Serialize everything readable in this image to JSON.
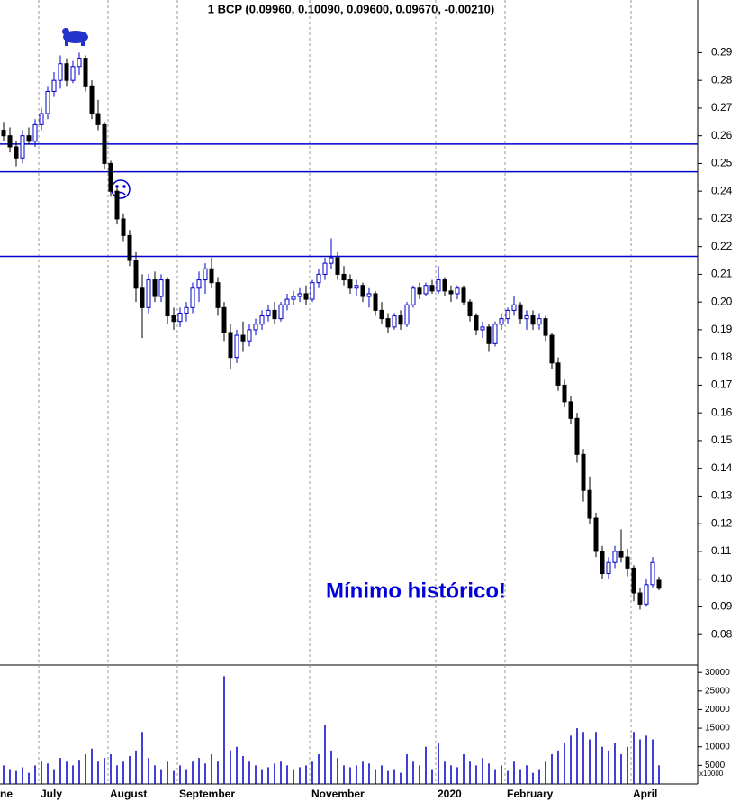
{
  "chart_data": {
    "type": "candlestick",
    "title": "1 BCP (0.09960, 0.10090, 0.09600, 0.09670, -0.00210)",
    "annotation": "Mínimo histórico!",
    "categories": [
      "ne",
      null,
      null,
      null,
      null,
      null,
      "July",
      null,
      null,
      null,
      null,
      null,
      null,
      null,
      null,
      null,
      null,
      "August",
      null,
      null,
      null,
      null,
      null,
      null,
      null,
      null,
      null,
      null,
      "September",
      null,
      null,
      null,
      null,
      null,
      null,
      null,
      null,
      null,
      null,
      null,
      null,
      null,
      null,
      null,
      null,
      null,
      null,
      null,
      null,
      "November",
      null,
      null,
      null,
      null,
      null,
      null,
      null,
      null,
      null,
      null,
      null,
      null,
      null,
      null,
      null,
      null,
      null,
      null,
      null,
      "2020",
      null,
      null,
      null,
      null,
      null,
      null,
      null,
      null,
      null,
      null,
      "February",
      null,
      null,
      null,
      null,
      null,
      null,
      null,
      null,
      null,
      null,
      null,
      null,
      null,
      null,
      null,
      null,
      null,
      null,
      null,
      "April",
      null,
      null,
      null,
      null
    ],
    "open": [
      0.262,
      0.26,
      0.256,
      0.252,
      0.26,
      0.258,
      0.264,
      0.268,
      0.276,
      0.28,
      0.286,
      0.28,
      0.285,
      0.288,
      0.278,
      0.268,
      0.264,
      0.25,
      0.24,
      0.23,
      0.224,
      0.215,
      0.205,
      0.198,
      0.208,
      0.202,
      0.208,
      0.195,
      0.193,
      0.196,
      0.198,
      0.205,
      0.208,
      0.212,
      0.207,
      0.198,
      0.189,
      0.18,
      0.188,
      0.186,
      0.19,
      0.192,
      0.195,
      0.197,
      0.194,
      0.199,
      0.201,
      0.202,
      0.203,
      0.201,
      0.207,
      0.21,
      0.214,
      0.216,
      0.21,
      0.208,
      0.205,
      0.206,
      0.202,
      0.203,
      0.197,
      0.194,
      0.191,
      0.195,
      0.192,
      0.199,
      0.205,
      0.203,
      0.206,
      0.204,
      0.208,
      0.204,
      0.203,
      0.205,
      0.2,
      0.195,
      0.19,
      0.191,
      0.185,
      0.192,
      0.194,
      0.197,
      0.199,
      0.194,
      0.195,
      0.192,
      0.194,
      0.188,
      0.178,
      0.17,
      0.164,
      0.158,
      0.145,
      0.132,
      0.122,
      0.11,
      0.102,
      0.106,
      0.11,
      0.108,
      0.104,
      0.095,
      0.091,
      0.098,
      0.0996
    ],
    "high": [
      0.265,
      0.263,
      0.258,
      0.262,
      0.263,
      0.266,
      0.27,
      0.278,
      0.283,
      0.289,
      0.288,
      0.287,
      0.29,
      0.289,
      0.28,
      0.273,
      0.265,
      0.251,
      0.241,
      0.232,
      0.226,
      0.218,
      0.21,
      0.21,
      0.211,
      0.21,
      0.209,
      0.198,
      0.198,
      0.2,
      0.207,
      0.211,
      0.214,
      0.216,
      0.209,
      0.2,
      0.192,
      0.19,
      0.193,
      0.192,
      0.194,
      0.197,
      0.199,
      0.2,
      0.2,
      0.203,
      0.204,
      0.205,
      0.206,
      0.208,
      0.212,
      0.216,
      0.223,
      0.218,
      0.213,
      0.21,
      0.208,
      0.207,
      0.205,
      0.204,
      0.2,
      0.196,
      0.196,
      0.197,
      0.2,
      0.206,
      0.207,
      0.207,
      0.208,
      0.213,
      0.209,
      0.206,
      0.206,
      0.206,
      0.201,
      0.196,
      0.193,
      0.192,
      0.193,
      0.196,
      0.198,
      0.202,
      0.2,
      0.197,
      0.197,
      0.196,
      0.195,
      0.189,
      0.18,
      0.172,
      0.166,
      0.16,
      0.147,
      0.137,
      0.124,
      0.112,
      0.108,
      0.112,
      0.118,
      0.111,
      0.105,
      0.097,
      0.1,
      0.108,
      0.1009
    ],
    "low": [
      0.258,
      0.254,
      0.249,
      0.25,
      0.257,
      0.256,
      0.262,
      0.266,
      0.274,
      0.277,
      0.278,
      0.279,
      0.282,
      0.276,
      0.266,
      0.262,
      0.248,
      0.238,
      0.228,
      0.222,
      0.213,
      0.2,
      0.187,
      0.196,
      0.2,
      0.2,
      0.192,
      0.19,
      0.191,
      0.193,
      0.196,
      0.2,
      0.203,
      0.205,
      0.195,
      0.186,
      0.176,
      0.178,
      0.182,
      0.184,
      0.188,
      0.19,
      0.193,
      0.192,
      0.193,
      0.197,
      0.199,
      0.2,
      0.199,
      0.2,
      0.205,
      0.208,
      0.212,
      0.208,
      0.206,
      0.203,
      0.202,
      0.2,
      0.198,
      0.195,
      0.192,
      0.189,
      0.19,
      0.19,
      0.191,
      0.198,
      0.201,
      0.202,
      0.203,
      0.203,
      0.202,
      0.2,
      0.201,
      0.199,
      0.193,
      0.188,
      0.187,
      0.182,
      0.184,
      0.19,
      0.192,
      0.195,
      0.192,
      0.19,
      0.19,
      0.19,
      0.186,
      0.176,
      0.168,
      0.162,
      0.156,
      0.142,
      0.128,
      0.12,
      0.108,
      0.1,
      0.1,
      0.104,
      0.106,
      0.101,
      0.092,
      0.089,
      0.09,
      0.097,
      0.096
    ],
    "close": [
      0.26,
      0.256,
      0.252,
      0.26,
      0.258,
      0.264,
      0.268,
      0.276,
      0.28,
      0.286,
      0.28,
      0.285,
      0.288,
      0.278,
      0.268,
      0.264,
      0.25,
      0.24,
      0.23,
      0.224,
      0.215,
      0.205,
      0.198,
      0.208,
      0.202,
      0.208,
      0.195,
      0.193,
      0.196,
      0.198,
      0.205,
      0.208,
      0.212,
      0.207,
      0.198,
      0.189,
      0.18,
      0.188,
      0.186,
      0.19,
      0.192,
      0.195,
      0.197,
      0.194,
      0.199,
      0.201,
      0.202,
      0.203,
      0.201,
      0.207,
      0.21,
      0.214,
      0.216,
      0.21,
      0.208,
      0.205,
      0.206,
      0.202,
      0.203,
      0.197,
      0.194,
      0.191,
      0.195,
      0.192,
      0.199,
      0.205,
      0.203,
      0.206,
      0.204,
      0.208,
      0.204,
      0.203,
      0.205,
      0.2,
      0.195,
      0.19,
      0.191,
      0.185,
      0.192,
      0.194,
      0.197,
      0.199,
      0.194,
      0.195,
      0.192,
      0.194,
      0.188,
      0.178,
      0.17,
      0.164,
      0.158,
      0.145,
      0.132,
      0.122,
      0.11,
      0.102,
      0.106,
      0.11,
      0.108,
      0.104,
      0.095,
      0.091,
      0.098,
      0.106,
      0.0967
    ],
    "up_color": "#0000cc",
    "down_color": "#000000",
    "hlines": [
      0.257,
      0.247,
      0.2165
    ],
    "hline_color": "#0000cc",
    "ylim": [
      0.069,
      0.309
    ],
    "yticks": [
      0.08,
      0.09,
      {
        "value": 0.1,
        "label": "0.10"
      },
      0.11,
      0.12,
      0.13,
      0.14,
      0.15,
      0.16,
      0.17,
      0.18,
      0.19,
      {
        "value": 0.2,
        "label": "0.20"
      },
      0.21,
      0.22,
      0.23,
      0.24,
      0.25,
      0.26,
      0.27,
      0.28,
      0.29
    ],
    "volume": [
      5000,
      4000,
      3500,
      4500,
      3000,
      5000,
      6000,
      5500,
      4000,
      7000,
      6000,
      5000,
      6500,
      8000,
      9500,
      6000,
      7000,
      8000,
      5000,
      6000,
      7500,
      9000,
      14000,
      7000,
      5000,
      4000,
      6000,
      3500,
      5000,
      4000,
      6000,
      7000,
      5500,
      8000,
      6000,
      29000,
      9000,
      10000,
      7500,
      6000,
      5000,
      4000,
      4500,
      5500,
      6000,
      5000,
      4000,
      4500,
      5000,
      6000,
      8000,
      16000,
      9000,
      7000,
      5000,
      4500,
      5000,
      6000,
      5500,
      4000,
      5000,
      3500,
      4000,
      3000,
      8000,
      6000,
      5000,
      10000,
      4000,
      11000,
      6000,
      5000,
      4500,
      8000,
      6000,
      5000,
      7000,
      5500,
      4000,
      5000,
      3500,
      6000,
      4000,
      5000,
      3000,
      4000,
      6000,
      8000,
      9000,
      11000,
      13000,
      15000,
      14000,
      12000,
      14000,
      10000,
      9000,
      11000,
      8000,
      10000,
      14000,
      12000,
      13000,
      12000,
      5000
    ],
    "volume_color": "#0000cc",
    "vol_ylim": [
      0,
      31500
    ],
    "vol_yticks": [
      5000,
      10000,
      15000,
      20000,
      25000,
      30000
    ],
    "vol_unit_label": "x10000"
  }
}
